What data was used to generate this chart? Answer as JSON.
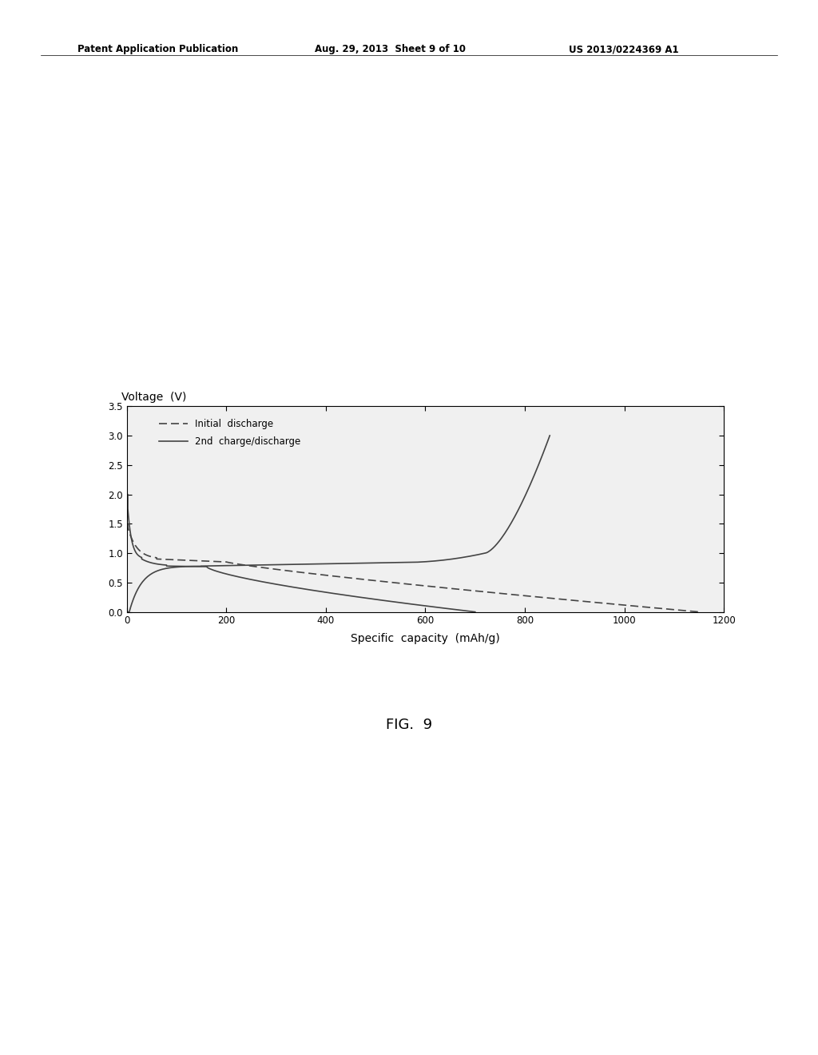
{
  "title": "",
  "ylabel": "Voltage  (V)",
  "xlabel": "Specific  capacity  (mAh/g)",
  "fig_caption": "FIG.  9",
  "header_left": "Patent Application Publication",
  "header_mid": "Aug. 29, 2013  Sheet 9 of 10",
  "header_right": "US 2013/0224369 A1",
  "xlim": [
    0,
    1200
  ],
  "ylim": [
    0.0,
    3.5
  ],
  "xticks": [
    0,
    200,
    400,
    600,
    800,
    1000,
    1200
  ],
  "yticks": [
    0.0,
    0.5,
    1.0,
    1.5,
    2.0,
    2.5,
    3.0,
    3.5
  ],
  "legend_initial": "Initial  discharge",
  "legend_2nd": "2nd  charge/discharge",
  "bg_color": "#ffffff",
  "line_color": "#444444",
  "plot_bg": "#f0f0f0"
}
